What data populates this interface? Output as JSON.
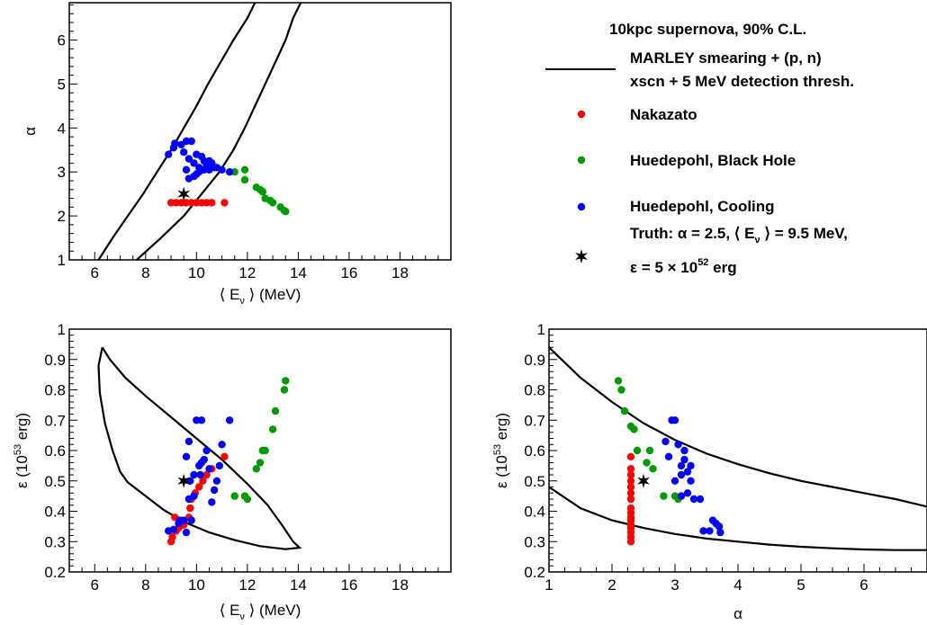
{
  "legend": {
    "header": "10kpc supernova, 90% C.L.",
    "contour_line1": "MARLEY smearing + (p, n)",
    "contour_line2": "xscn + 5 MeV detection thresh.",
    "nakazato": "Nakazato",
    "black_hole": "Huedepohl, Black Hole",
    "cooling": "Huedepohl, Cooling",
    "truth_line1": "Truth:  α = 2.5,  ⟨ E",
    "truth_nu": "ν",
    "truth_line1b": " ⟩ = 9.5 MeV,",
    "truth_line2": "ε = 5 × 10",
    "truth_exp": "52",
    "truth_line2b": " erg"
  },
  "colors": {
    "nakazato": "#ff0000",
    "black_hole": "#009900",
    "cooling": "#0000ff",
    "contour": "#000000"
  },
  "chart_data": [
    {
      "id": "alpha_vs_E",
      "type": "scatter",
      "xlabel_pre": "⟨ E",
      "xlabel_sub": "ν",
      "xlabel_post": " ⟩ (MeV)",
      "ylabel": "α",
      "xlim": [
        5,
        20
      ],
      "ylim": [
        1,
        6.85
      ],
      "xticks": [
        6,
        8,
        10,
        12,
        14,
        16,
        18
      ],
      "yticks": [
        1,
        2,
        3,
        4,
        5,
        6
      ],
      "truth": [
        9.5,
        2.5
      ],
      "series": [
        {
          "name": "Nakazato",
          "color": "#ff0000",
          "points": [
            [
              9.0,
              2.3
            ],
            [
              9.2,
              2.3
            ],
            [
              9.4,
              2.3
            ],
            [
              9.6,
              2.3
            ],
            [
              9.8,
              2.3
            ],
            [
              10.0,
              2.3
            ],
            [
              10.2,
              2.3
            ],
            [
              10.4,
              2.3
            ],
            [
              10.6,
              2.3
            ],
            [
              11.1,
              2.3
            ]
          ]
        },
        {
          "name": "Huedepohl, Black Hole",
          "color": "#009900",
          "points": [
            [
              11.5,
              3.0
            ],
            [
              11.9,
              3.05
            ],
            [
              11.9,
              2.82
            ],
            [
              12.35,
              2.65
            ],
            [
              12.5,
              2.6
            ],
            [
              12.6,
              2.55
            ],
            [
              12.7,
              2.4
            ],
            [
              12.9,
              2.35
            ],
            [
              13.0,
              2.3
            ],
            [
              13.3,
              2.2
            ],
            [
              13.5,
              2.1
            ],
            [
              13.45,
              2.12
            ]
          ]
        },
        {
          "name": "Huedepohl, Cooling",
          "color": "#0000ff",
          "points": [
            [
              8.9,
              3.4
            ],
            [
              9.1,
              3.55
            ],
            [
              9.15,
              3.65
            ],
            [
              9.4,
              3.62
            ],
            [
              9.6,
              3.7
            ],
            [
              9.8,
              3.7
            ],
            [
              9.5,
              3.45
            ],
            [
              9.7,
              3.3
            ],
            [
              9.9,
              3.2
            ],
            [
              10.0,
              3.4
            ],
            [
              10.2,
              3.35
            ],
            [
              10.1,
              3.1
            ],
            [
              10.3,
              3.25
            ],
            [
              10.4,
              3.15
            ],
            [
              10.5,
              3.25
            ],
            [
              10.6,
              3.2
            ],
            [
              10.8,
              3.1
            ],
            [
              11.0,
              3.05
            ],
            [
              11.3,
              3.0
            ],
            [
              9.6,
              3.05
            ],
            [
              9.7,
              2.85
            ],
            [
              9.9,
              2.9
            ],
            [
              10.1,
              3.0
            ],
            [
              10.3,
              3.05
            ],
            [
              10.0,
              2.95
            ],
            [
              10.5,
              3.05
            ],
            [
              10.7,
              3.1
            ]
          ]
        }
      ],
      "contour": [
        [
          6.15,
          1.0
        ],
        [
          6.7,
          1.5
        ],
        [
          7.3,
          2.0
        ],
        [
          7.9,
          2.5
        ],
        [
          8.45,
          3.0
        ],
        [
          9.0,
          3.5
        ],
        [
          9.5,
          4.0
        ],
        [
          10.0,
          4.5
        ],
        [
          10.45,
          5.0
        ],
        [
          10.95,
          5.5
        ],
        [
          11.45,
          6.0
        ],
        [
          12.0,
          6.5
        ],
        [
          12.3,
          6.85
        ],
        null,
        [
          14.1,
          6.85
        ],
        [
          13.8,
          6.5
        ],
        [
          13.5,
          6.0
        ],
        [
          13.1,
          5.5
        ],
        [
          12.7,
          5.0
        ],
        [
          12.3,
          4.5
        ],
        [
          11.9,
          4.0
        ],
        [
          11.45,
          3.5
        ],
        [
          10.9,
          3.0
        ],
        [
          10.2,
          2.5
        ],
        [
          9.5,
          2.0
        ],
        [
          8.6,
          1.5
        ],
        [
          7.65,
          1.0
        ]
      ]
    },
    {
      "id": "eps_vs_E",
      "type": "scatter",
      "xlabel_pre": "⟨ E",
      "xlabel_sub": "ν",
      "xlabel_post": " ⟩ (MeV)",
      "ylabel_pre": "ε (10",
      "ylabel_sup": "53",
      "ylabel_post": " erg)",
      "xlim": [
        5,
        20
      ],
      "ylim": [
        0.2,
        1.0
      ],
      "xticks": [
        6,
        8,
        10,
        12,
        14,
        16,
        18
      ],
      "yticks": [
        0.2,
        0.3,
        0.4,
        0.5,
        0.6,
        0.7,
        0.8,
        0.9,
        1
      ],
      "ytick_labels": [
        "0.2",
        "0.3",
        "0.4",
        "0.5",
        "0.6",
        "0.7",
        "0.8",
        "0.9",
        "1"
      ],
      "truth": [
        9.5,
        0.5
      ],
      "series": [
        {
          "name": "Nakazato",
          "color": "#ff0000",
          "points": [
            [
              9.0,
              0.3
            ],
            [
              9.05,
              0.315
            ],
            [
              9.2,
              0.335
            ],
            [
              9.3,
              0.345
            ],
            [
              9.5,
              0.355
            ],
            [
              9.7,
              0.38
            ],
            [
              9.75,
              0.41
            ],
            [
              9.8,
              0.44
            ],
            [
              9.95,
              0.46
            ],
            [
              10.1,
              0.48
            ],
            [
              10.25,
              0.5
            ],
            [
              10.4,
              0.52
            ],
            [
              10.6,
              0.54
            ],
            [
              11.1,
              0.58
            ],
            [
              9.15,
              0.38
            ]
          ]
        },
        {
          "name": "Huedepohl, Black Hole",
          "color": "#009900",
          "points": [
            [
              11.5,
              0.45
            ],
            [
              11.9,
              0.45
            ],
            [
              12.0,
              0.44
            ],
            [
              12.35,
              0.54
            ],
            [
              12.5,
              0.56
            ],
            [
              12.6,
              0.6
            ],
            [
              12.7,
              0.6
            ],
            [
              13.0,
              0.67
            ],
            [
              13.1,
              0.73
            ],
            [
              13.45,
              0.8
            ],
            [
              13.5,
              0.83
            ]
          ]
        },
        {
          "name": "Huedepohl, Cooling",
          "color": "#0000ff",
          "points": [
            [
              8.9,
              0.335
            ],
            [
              9.1,
              0.34
            ],
            [
              9.3,
              0.36
            ],
            [
              9.35,
              0.37
            ],
            [
              9.5,
              0.37
            ],
            [
              9.6,
              0.33
            ],
            [
              9.8,
              0.37
            ],
            [
              9.7,
              0.44
            ],
            [
              9.9,
              0.45
            ],
            [
              9.75,
              0.5
            ],
            [
              9.9,
              0.52
            ],
            [
              10.1,
              0.55
            ],
            [
              10.2,
              0.56
            ],
            [
              10.3,
              0.57
            ],
            [
              10.15,
              0.52
            ],
            [
              10.5,
              0.54
            ],
            [
              10.4,
              0.6
            ],
            [
              10.6,
              0.43
            ],
            [
              10.7,
              0.47
            ],
            [
              10.8,
              0.5
            ],
            [
              11.0,
              0.62
            ],
            [
              11.3,
              0.7
            ],
            [
              10.0,
              0.7
            ],
            [
              10.2,
              0.7
            ],
            [
              9.7,
              0.63
            ],
            [
              9.6,
              0.58
            ],
            [
              10.9,
              0.55
            ]
          ]
        }
      ],
      "contour": [
        [
          6.3,
          0.94
        ],
        [
          6.6,
          0.9
        ],
        [
          7.2,
          0.84
        ],
        [
          8.0,
          0.78
        ],
        [
          9.0,
          0.71
        ],
        [
          10.0,
          0.64
        ],
        [
          11.0,
          0.57
        ],
        [
          12.0,
          0.49
        ],
        [
          12.8,
          0.42
        ],
        [
          13.4,
          0.35
        ],
        [
          13.8,
          0.3
        ],
        [
          14.05,
          0.28
        ],
        [
          13.5,
          0.275
        ],
        [
          12.5,
          0.285
        ],
        [
          11.5,
          0.305
        ],
        [
          10.5,
          0.33
        ],
        [
          9.5,
          0.365
        ],
        [
          8.7,
          0.405
        ],
        [
          8.0,
          0.45
        ],
        [
          7.3,
          0.495
        ],
        [
          7.0,
          0.53
        ],
        [
          6.7,
          0.6
        ],
        [
          6.4,
          0.69
        ],
        [
          6.2,
          0.79
        ],
        [
          6.15,
          0.88
        ],
        [
          6.3,
          0.94
        ]
      ]
    },
    {
      "id": "eps_vs_alpha",
      "type": "scatter",
      "xlabel_pre": "α",
      "ylabel_pre": "ε (10",
      "ylabel_sup": "53",
      "ylabel_post": " erg)",
      "xlim": [
        1,
        7
      ],
      "ylim": [
        0.2,
        1.0
      ],
      "xticks": [
        1,
        2,
        3,
        4,
        5,
        6
      ],
      "yticks": [
        0.2,
        0.3,
        0.4,
        0.5,
        0.6,
        0.7,
        0.8,
        0.9,
        1
      ],
      "ytick_labels": [
        "0.2",
        "0.3",
        "0.4",
        "0.5",
        "0.6",
        "0.7",
        "0.8",
        "0.9",
        "1"
      ],
      "truth": [
        2.5,
        0.5
      ],
      "series": [
        {
          "name": "Nakazato",
          "color": "#ff0000",
          "points": [
            [
              2.3,
              0.3
            ],
            [
              2.3,
              0.315
            ],
            [
              2.3,
              0.33
            ],
            [
              2.3,
              0.345
            ],
            [
              2.3,
              0.355
            ],
            [
              2.3,
              0.37
            ],
            [
              2.3,
              0.38
            ],
            [
              2.3,
              0.395
            ],
            [
              2.3,
              0.41
            ],
            [
              2.3,
              0.44
            ],
            [
              2.3,
              0.46
            ],
            [
              2.3,
              0.48
            ],
            [
              2.3,
              0.5
            ],
            [
              2.3,
              0.52
            ],
            [
              2.3,
              0.54
            ],
            [
              2.3,
              0.58
            ]
          ]
        },
        {
          "name": "Huedepohl, Black Hole",
          "color": "#009900",
          "points": [
            [
              2.1,
              0.83
            ],
            [
              2.15,
              0.8
            ],
            [
              2.2,
              0.73
            ],
            [
              2.3,
              0.68
            ],
            [
              2.35,
              0.67
            ],
            [
              2.4,
              0.6
            ],
            [
              2.55,
              0.56
            ],
            [
              2.65,
              0.54
            ],
            [
              2.82,
              0.45
            ],
            [
              3.0,
              0.45
            ],
            [
              3.05,
              0.44
            ],
            [
              2.6,
              0.6
            ]
          ]
        },
        {
          "name": "Huedepohl, Cooling",
          "color": "#0000ff",
          "points": [
            [
              2.85,
              0.63
            ],
            [
              2.9,
              0.58
            ],
            [
              2.95,
              0.7
            ],
            [
              3.0,
              0.7
            ],
            [
              3.05,
              0.62
            ],
            [
              3.1,
              0.55
            ],
            [
              3.15,
              0.57
            ],
            [
              3.2,
              0.53
            ],
            [
              3.15,
              0.6
            ],
            [
              3.25,
              0.55
            ],
            [
              3.25,
              0.5
            ],
            [
              3.2,
              0.46
            ],
            [
              3.1,
              0.45
            ],
            [
              3.3,
              0.44
            ],
            [
              3.4,
              0.44
            ],
            [
              3.45,
              0.335
            ],
            [
              3.55,
              0.335
            ],
            [
              3.6,
              0.37
            ],
            [
              3.65,
              0.36
            ],
            [
              3.7,
              0.35
            ],
            [
              3.72,
              0.33
            ],
            [
              3.0,
              0.5
            ],
            [
              3.1,
              0.52
            ]
          ]
        }
      ],
      "contour": [
        [
          1.0,
          0.94
        ],
        [
          1.5,
          0.84
        ],
        [
          2.0,
          0.76
        ],
        [
          2.5,
          0.69
        ],
        [
          3.0,
          0.635
        ],
        [
          3.5,
          0.59
        ],
        [
          4.0,
          0.555
        ],
        [
          4.5,
          0.525
        ],
        [
          5.0,
          0.5
        ],
        [
          5.5,
          0.48
        ],
        [
          6.0,
          0.46
        ],
        [
          6.5,
          0.44
        ],
        [
          7.0,
          0.415
        ],
        null,
        [
          1.0,
          0.48
        ],
        [
          1.5,
          0.41
        ],
        [
          2.0,
          0.37
        ],
        [
          2.5,
          0.345
        ],
        [
          3.0,
          0.325
        ],
        [
          3.5,
          0.31
        ],
        [
          4.0,
          0.3
        ],
        [
          4.5,
          0.29
        ],
        [
          5.0,
          0.283
        ],
        [
          5.5,
          0.278
        ],
        [
          6.0,
          0.274
        ],
        [
          6.5,
          0.272
        ],
        [
          7.0,
          0.272
        ]
      ]
    }
  ]
}
